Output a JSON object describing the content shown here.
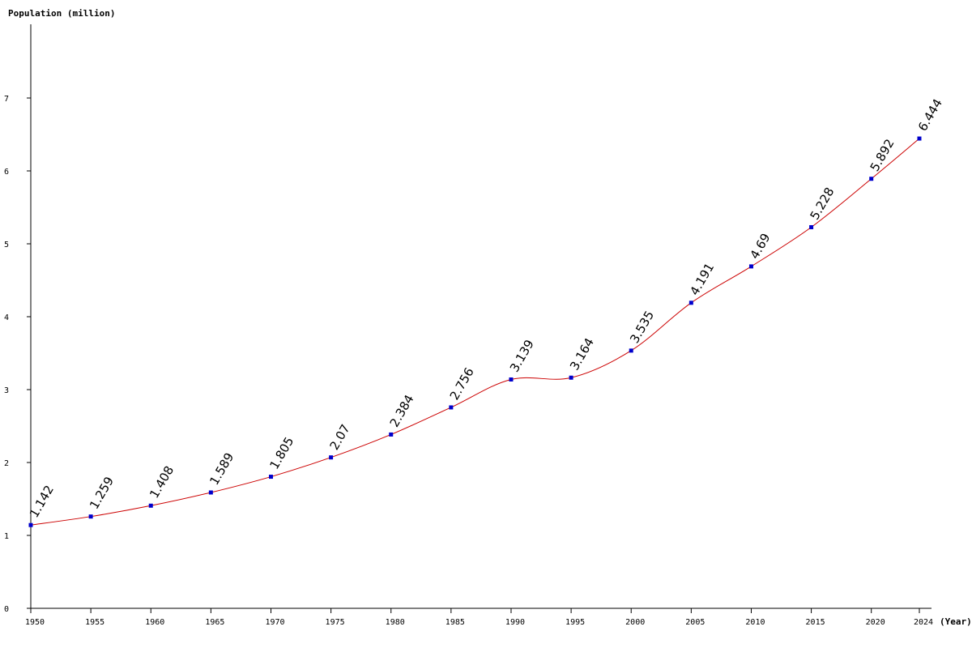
{
  "chart_data": {
    "type": "line",
    "ylabel": "Population (million)",
    "xlabel": "(Year)",
    "x": [
      1950,
      1955,
      1960,
      1965,
      1970,
      1975,
      1980,
      1985,
      1990,
      1995,
      2000,
      2005,
      2010,
      2015,
      2020,
      2024
    ],
    "series": [
      {
        "values": [
          1.142,
          1.259,
          1.408,
          1.589,
          1.805,
          2.07,
          2.384,
          2.756,
          3.139,
          3.164,
          3.535,
          4.191,
          4.69,
          5.228,
          5.892,
          6.444
        ],
        "labels": [
          "1.142",
          "1.259",
          "1.408",
          "1.589",
          "1.805",
          "2.07",
          "2.384",
          "2.756",
          "3.139",
          "3.164",
          "3.535",
          "4.191",
          "4.69",
          "5.228",
          "5.892",
          "6.444"
        ]
      }
    ],
    "x_ticks": [
      "1950",
      "1955",
      "1960",
      "1965",
      "1970",
      "1975",
      "1980",
      "1985",
      "1990",
      "1995",
      "2000",
      "2005",
      "2010",
      "2015",
      "2020",
      "2024"
    ],
    "y_ticks": [
      "0",
      "1",
      "2",
      "3",
      "4",
      "5",
      "6",
      "7"
    ],
    "xlim": [
      1950,
      2024
    ],
    "ylim": [
      0,
      8
    ],
    "grid": false,
    "legend": "none",
    "colors": {
      "line": "#cc0000",
      "marker": "#0000cc",
      "axis": "#000000"
    }
  }
}
